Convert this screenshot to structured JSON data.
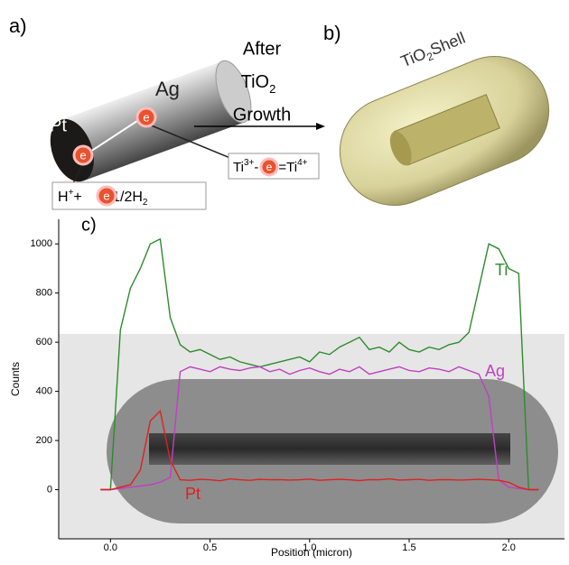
{
  "diagram": {
    "panel_a": "a)",
    "panel_b": "b)",
    "panel_c": "c)",
    "ag_label": "Ag",
    "pt_label": "Pt",
    "electrons": [
      "e",
      "e",
      "e",
      "e"
    ],
    "arrow_text": {
      "line1": "After",
      "tio": "TiO",
      "sub2": "2",
      "line3": "Growth"
    },
    "shell_label": {
      "tio": "TiO",
      "sub2": "2",
      "shell": "Shell"
    },
    "ti_reaction": {
      "ti": "Ti",
      "sup1": "3+",
      "minus": "-",
      "eq": "=Ti",
      "sup2": "4+"
    },
    "h_reaction": {
      "h": "H",
      "sup": "+",
      "plus": "+",
      "eq": "=1/2H",
      "sub": "2"
    }
  },
  "chart_data": {
    "type": "line",
    "xlabel": "Position (micron)",
    "ylabel": "Counts",
    "xlim": [
      -0.26,
      2.28
    ],
    "ylim": [
      -200,
      1100
    ],
    "xticks": [
      {
        "value": 0,
        "label": "0.0"
      },
      0.5,
      {
        "value": 1,
        "label": "1.0"
      },
      1.5,
      {
        "value": 2,
        "label": "2.0"
      }
    ],
    "yticks": [
      0,
      200,
      400,
      600,
      800,
      1000
    ],
    "x": [
      -0.05,
      0,
      0.05,
      0.1,
      0.15,
      0.2,
      0.25,
      0.3,
      0.35,
      0.4,
      0.45,
      0.5,
      0.55,
      0.6,
      0.65,
      0.7,
      0.75,
      0.8,
      0.85,
      0.9,
      0.95,
      1.0,
      1.05,
      1.1,
      1.15,
      1.2,
      1.25,
      1.3,
      1.35,
      1.4,
      1.45,
      1.5,
      1.55,
      1.6,
      1.65,
      1.7,
      1.75,
      1.8,
      1.85,
      1.9,
      1.95,
      2.0,
      2.05,
      2.1,
      2.15
    ],
    "series": [
      {
        "name": "Ti",
        "color": "#2e8b2e",
        "values": [
          0,
          0,
          650,
          820,
          900,
          1000,
          1020,
          700,
          590,
          560,
          570,
          550,
          530,
          540,
          520,
          510,
          500,
          510,
          520,
          530,
          540,
          520,
          560,
          550,
          580,
          600,
          620,
          570,
          580,
          560,
          600,
          570,
          560,
          580,
          570,
          590,
          600,
          640,
          820,
          1000,
          980,
          900,
          880,
          0,
          0
        ]
      },
      {
        "name": "Ag",
        "color": "#c040c0",
        "values": [
          0,
          0,
          5,
          10,
          15,
          20,
          30,
          50,
          480,
          500,
          490,
          480,
          500,
          490,
          485,
          495,
          500,
          480,
          490,
          470,
          485,
          495,
          480,
          470,
          490,
          480,
          500,
          470,
          480,
          490,
          500,
          485,
          480,
          495,
          490,
          480,
          500,
          485,
          470,
          380,
          40,
          10,
          5,
          0,
          0
        ]
      },
      {
        "name": "Pt",
        "color": "#e02020",
        "values": [
          0,
          0,
          10,
          20,
          80,
          280,
          320,
          120,
          40,
          38,
          42,
          40,
          36,
          44,
          40,
          38,
          42,
          40,
          41,
          39,
          40,
          43,
          38,
          40,
          42,
          40,
          37,
          41,
          40,
          44,
          39,
          40,
          42,
          38,
          40,
          41,
          39,
          40,
          42,
          40,
          38,
          30,
          10,
          0,
          0
        ]
      }
    ]
  }
}
